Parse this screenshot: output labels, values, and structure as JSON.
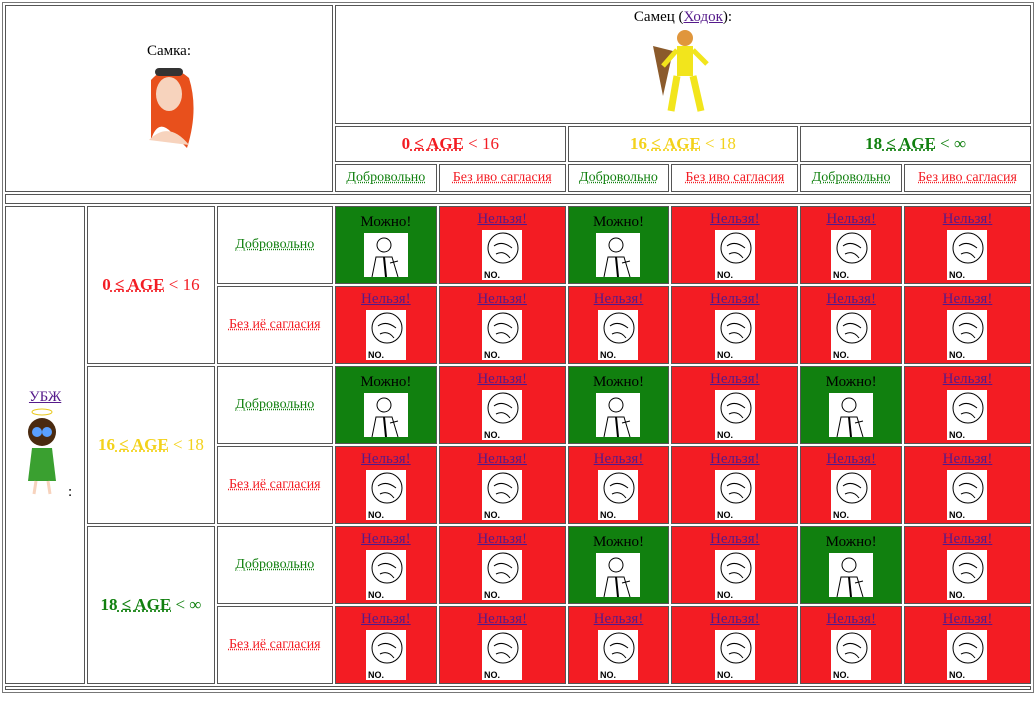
{
  "female_header": {
    "label": "Самка:"
  },
  "male_header": {
    "prefix": "Самец (",
    "link": "Ходок",
    "suffix": "):"
  },
  "age_groups": [
    {
      "lo": "0",
      "op1": " ≤ ",
      "var": "AGE",
      "op2": " < ",
      "hi": "16",
      "color": "#f31c23"
    },
    {
      "lo": "16",
      "op1": " ≤ ",
      "var": "AGE",
      "op2": " < ",
      "hi": "18",
      "color": "#f3d21c"
    },
    {
      "lo": "18",
      "op1": " ≤ ",
      "var": "AGE",
      "op2": " < ",
      "hi": "∞",
      "color": "#11800f"
    }
  ],
  "male_consent": [
    {
      "label": "Добровольно",
      "color": "#11800f"
    },
    {
      "label": "Без иво сагласия",
      "color": "#f31c23"
    }
  ],
  "female_consent": [
    {
      "label": "Добровольно",
      "color": "#11800f"
    },
    {
      "label": "Без иё сагласия",
      "color": "#f31c23"
    }
  ],
  "side": {
    "link": "УБЖ",
    "suffix": ":"
  },
  "labels": {
    "yes": "Можно!",
    "no": "Нельзя!",
    "no_img": "NO."
  },
  "colors": {
    "yes": "#11800f",
    "no": "#f31c23"
  },
  "matrix": [
    [
      1,
      0,
      1,
      0,
      0,
      0
    ],
    [
      0,
      0,
      0,
      0,
      0,
      0
    ],
    [
      1,
      0,
      1,
      0,
      1,
      0
    ],
    [
      0,
      0,
      0,
      0,
      0,
      0
    ],
    [
      0,
      0,
      1,
      0,
      1,
      0
    ],
    [
      0,
      0,
      0,
      0,
      0,
      0
    ]
  ]
}
